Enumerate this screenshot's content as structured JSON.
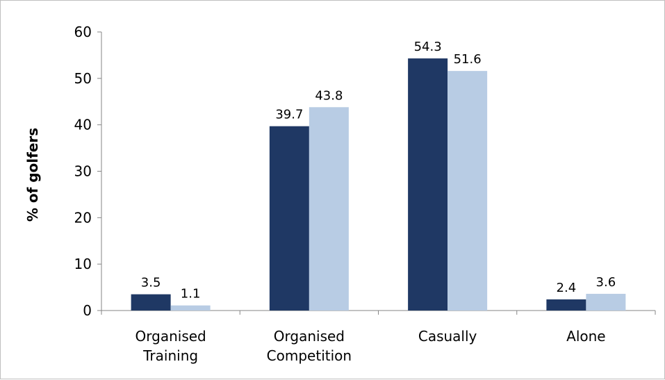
{
  "chart_data": {
    "type": "bar",
    "title": "",
    "xlabel": "",
    "ylabel": "% of golfers",
    "ylim": [
      0,
      60
    ],
    "yticks": [
      "0",
      "10",
      "20",
      "30",
      "40",
      "50",
      "60"
    ],
    "grid": false,
    "legend": "none",
    "categories": [
      [
        "Organised",
        "Training"
      ],
      [
        "Organised",
        "Competition"
      ],
      [
        "Casually"
      ],
      [
        "Alone"
      ]
    ],
    "series": [
      {
        "color": "#1f3864",
        "values": [
          3.5,
          39.7,
          54.3,
          2.4
        ],
        "labels": [
          "3.5",
          "39.7",
          "54.3",
          "2.4"
        ]
      },
      {
        "color": "#b8cce4",
        "values": [
          1.1,
          43.8,
          51.6,
          3.6
        ],
        "labels": [
          "1.1",
          "43.8",
          "51.6",
          "3.6"
        ]
      }
    ]
  }
}
